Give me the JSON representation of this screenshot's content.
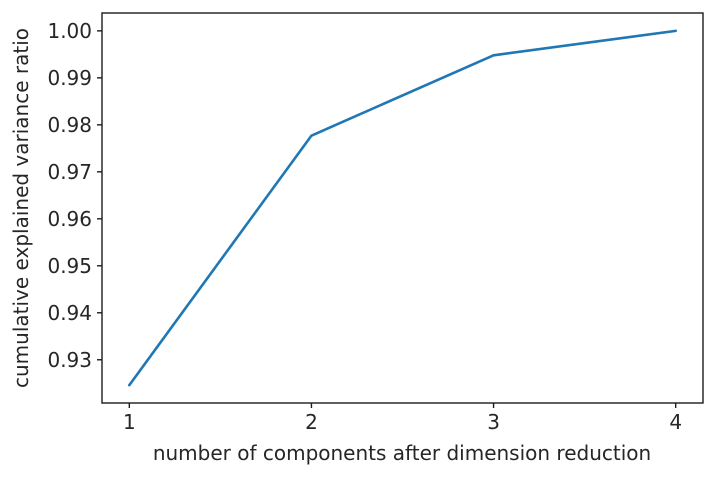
{
  "figure": {
    "background": "#ffffff",
    "text_color": "#262626",
    "spine_color": "#1c1c1c"
  },
  "chart_data": {
    "type": "line",
    "title": "",
    "xlabel": "number of components after dimension reduction",
    "ylabel": "cumulative explained variance ratio",
    "x": [
      1,
      2,
      3,
      4
    ],
    "y": [
      0.9246,
      0.9777,
      0.9948,
      1.0
    ],
    "series_name": "cumulative explained variance ratio",
    "xlim": [
      0.85,
      4.15
    ],
    "ylim": [
      0.9208,
      1.0038
    ],
    "xticks": [
      1,
      2,
      3,
      4
    ],
    "xtick_labels": [
      "1",
      "2",
      "3",
      "4"
    ],
    "yticks": [
      0.93,
      0.94,
      0.95,
      0.96,
      0.97,
      0.98,
      0.99,
      1.0
    ],
    "ytick_labels": [
      "0.93",
      "0.94",
      "0.95",
      "0.96",
      "0.97",
      "0.98",
      "0.99",
      "1.00"
    ],
    "line_color": "#1f77b4",
    "line_width": 2.6,
    "grid": false,
    "markers": false,
    "legend_position": "none"
  }
}
